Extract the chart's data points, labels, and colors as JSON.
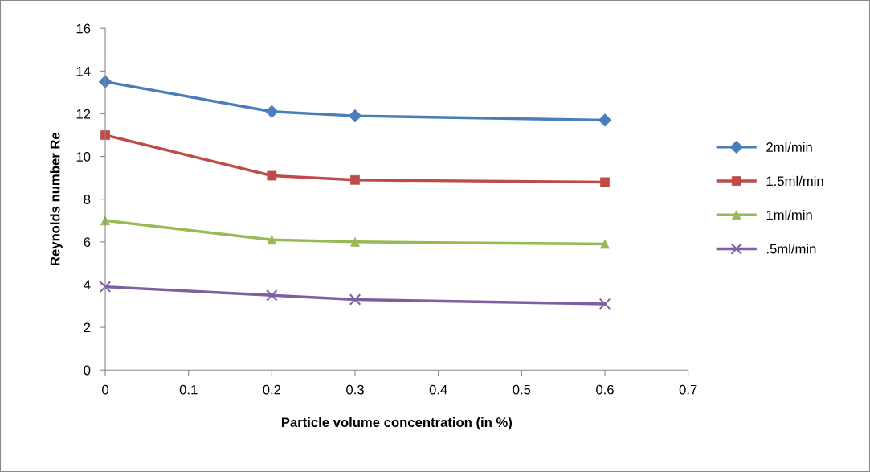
{
  "chart_data": {
    "type": "line",
    "xlabel": "Particle volume concentration (in %)",
    "ylabel": "Reynolds number Re",
    "x": [
      0,
      0.2,
      0.3,
      0.6
    ],
    "series": [
      {
        "name": "2ml/min",
        "color": "#4a7ebb",
        "marker": "diamond",
        "values": [
          13.5,
          12.1,
          11.9,
          11.7
        ]
      },
      {
        "name": "1.5ml/min",
        "color": "#be4b48",
        "marker": "square",
        "values": [
          11,
          9.1,
          8.9,
          8.8
        ]
      },
      {
        "name": "1ml/min",
        "color": "#98b954",
        "marker": "triangle",
        "values": [
          7,
          6.1,
          6.0,
          5.9
        ]
      },
      {
        "name": ".5ml/min",
        "color": "#7d60a0",
        "marker": "cross",
        "values": [
          3.9,
          3.5,
          3.3,
          3.1
        ]
      }
    ],
    "xlim": [
      0,
      0.7
    ],
    "xticks": [
      0,
      0.1,
      0.2,
      0.3,
      0.4,
      0.5,
      0.6,
      0.7
    ],
    "ylim": [
      0,
      16
    ],
    "yticks": [
      0,
      2,
      4,
      6,
      8,
      10,
      12,
      14,
      16
    ],
    "grid": false,
    "legend": "right",
    "line_style": "solid"
  }
}
